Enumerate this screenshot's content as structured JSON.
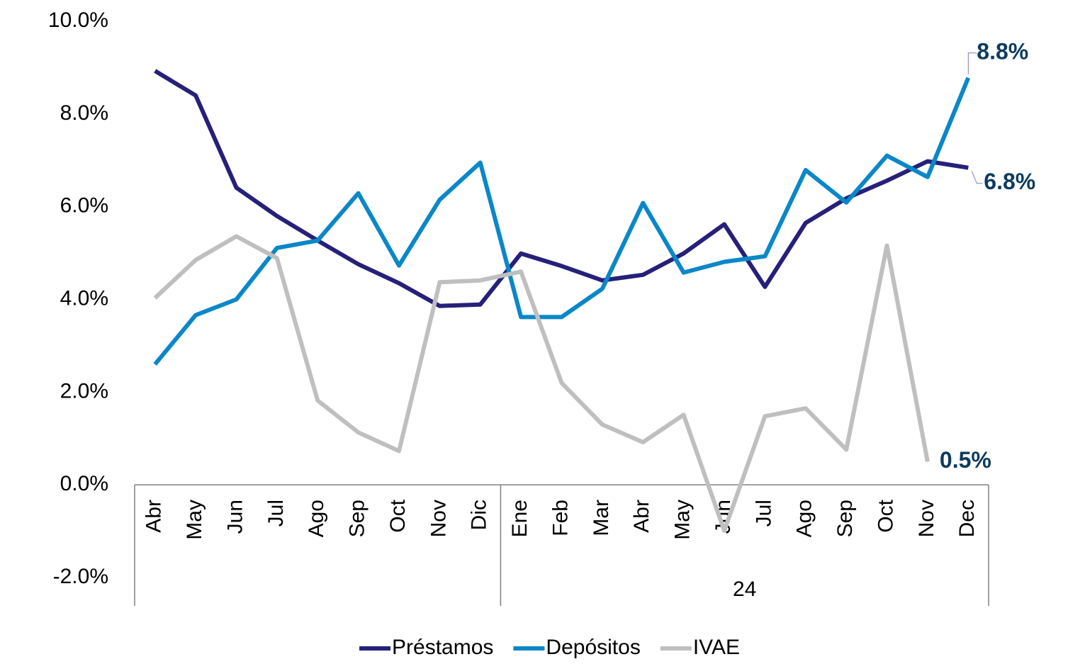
{
  "chart_data": {
    "type": "line",
    "categories": [
      "Abr",
      "May",
      "Jun",
      "Jul",
      "Ago",
      "Sep",
      "Oct",
      "Nov",
      "Dic",
      "Ene",
      "Feb",
      "Mar",
      "Abr",
      "May",
      "Jun",
      "Jul",
      "Ago",
      "Sep",
      "Oct",
      "Nov",
      "Dec"
    ],
    "groups": [
      {
        "label": null,
        "count": 9
      },
      {
        "label": "24",
        "count": 12
      }
    ],
    "series": [
      {
        "name": "Préstamos",
        "color": "#26207a",
        "values": [
          8.93,
          8.4,
          6.41,
          5.8,
          5.27,
          4.76,
          4.35,
          3.86,
          3.89,
          4.99,
          4.72,
          4.41,
          4.53,
          4.99,
          5.62,
          4.27,
          5.65,
          6.18,
          6.56,
          6.98,
          6.84
        ],
        "value_labels": [
          null,
          null,
          null,
          null,
          null,
          null,
          null,
          null,
          null,
          null,
          null,
          null,
          null,
          null,
          null,
          null,
          null,
          null,
          null,
          null,
          "6.8%"
        ]
      },
      {
        "name": "Depósitos",
        "color": "#0a87c8",
        "values": [
          2.6,
          3.66,
          4.0,
          5.11,
          5.27,
          6.29,
          4.73,
          6.15,
          6.95,
          3.62,
          3.62,
          4.23,
          6.08,
          4.58,
          4.81,
          4.93,
          6.79,
          6.09,
          7.1,
          6.64,
          8.78
        ],
        "value_labels": [
          null,
          null,
          null,
          null,
          null,
          null,
          null,
          null,
          null,
          null,
          null,
          null,
          null,
          null,
          null,
          null,
          null,
          null,
          null,
          null,
          "8.8%"
        ]
      },
      {
        "name": "IVAE",
        "color": "#bfbfbf",
        "values": [
          4.03,
          4.85,
          5.36,
          4.89,
          1.82,
          1.13,
          0.73,
          4.37,
          4.41,
          4.6,
          2.2,
          1.3,
          0.92,
          1.51,
          -0.99,
          1.48,
          1.65,
          0.76,
          5.16,
          0.5,
          null
        ],
        "value_labels": [
          null,
          null,
          null,
          null,
          null,
          null,
          null,
          null,
          null,
          null,
          null,
          null,
          null,
          null,
          null,
          null,
          null,
          null,
          null,
          "0.5%",
          null
        ]
      }
    ],
    "ylim": [
      -2,
      10
    ],
    "yticks": [
      {
        "value": -2,
        "label": "-2.0%"
      },
      {
        "value": 0,
        "label": "0.0%"
      },
      {
        "value": 2,
        "label": "2.0%"
      },
      {
        "value": 4,
        "label": "4.0%"
      },
      {
        "value": 6,
        "label": "6.0%"
      },
      {
        "value": 8,
        "label": "8.0%"
      },
      {
        "value": 10,
        "label": "10.0%"
      }
    ],
    "legend": "bottom"
  }
}
